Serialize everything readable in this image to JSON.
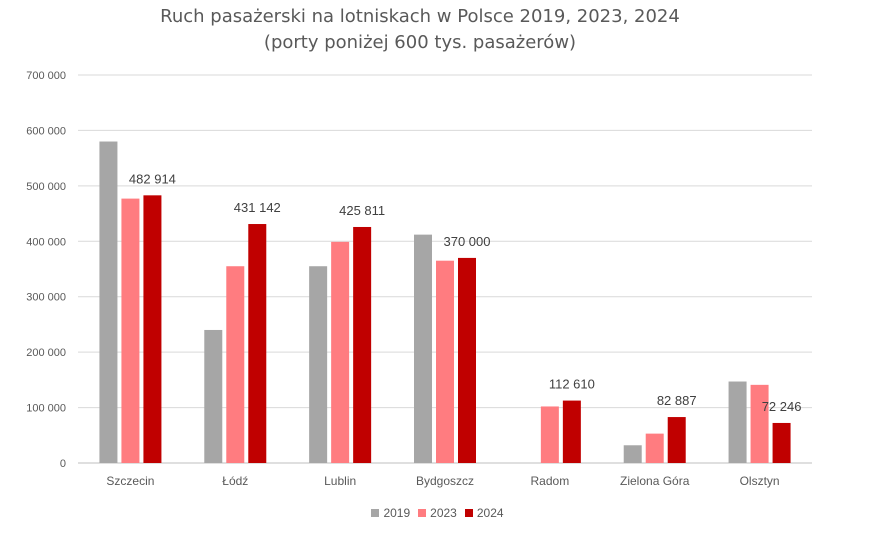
{
  "chart_data": {
    "type": "bar",
    "title": "Ruch pasażerski na lotniskach w Polsce 2019, 2023, 2024",
    "subtitle": "(porty poniżej 600 tys. pasażerów)",
    "categories": [
      "Szczecin",
      "Łódź",
      "Lublin",
      "Bydgoszcz",
      "Radom",
      "Zielona Góra",
      "Olsztyn"
    ],
    "series": [
      {
        "name": "2019",
        "color": "#a6a6a6",
        "values": [
          580000,
          240000,
          355000,
          412000,
          null,
          32000,
          147000
        ]
      },
      {
        "name": "2023",
        "color": "#ff7c80",
        "values": [
          477000,
          355000,
          399000,
          365000,
          102000,
          53000,
          141000
        ]
      },
      {
        "name": "2024",
        "color": "#c00000",
        "values": [
          482914,
          431142,
          425811,
          370000,
          112610,
          82887,
          72246
        ]
      }
    ],
    "data_labels": [
      {
        "series": "2024",
        "category": "Szczecin",
        "text": "482 914"
      },
      {
        "series": "2024",
        "category": "Łódź",
        "text": "431 142"
      },
      {
        "series": "2024",
        "category": "Lublin",
        "text": "425 811"
      },
      {
        "series": "2024",
        "category": "Bydgoszcz",
        "text": "370 000"
      },
      {
        "series": "2024",
        "category": "Radom",
        "text": "112 610"
      },
      {
        "series": "2024",
        "category": "Zielona Góra",
        "text": "82 887"
      },
      {
        "series": "2024",
        "category": "Olsztyn",
        "text": "72 246"
      }
    ],
    "yticks": [
      "0",
      "100 000",
      "200 000",
      "300 000",
      "400 000",
      "500 000",
      "600 000",
      "700 000"
    ],
    "ylim": [
      0,
      700000
    ],
    "grid": true,
    "legend_position": "bottom"
  }
}
